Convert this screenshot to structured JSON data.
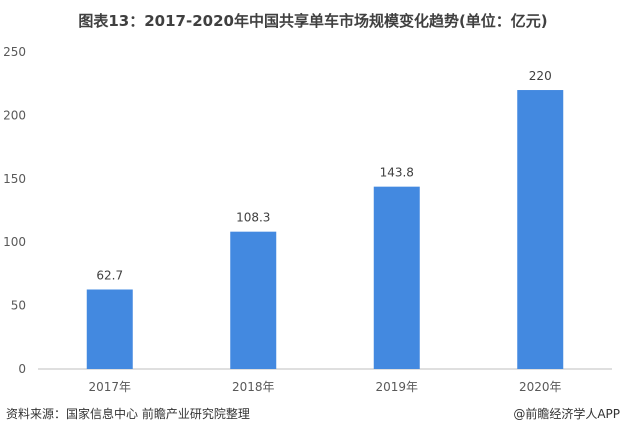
{
  "chart_data": {
    "type": "bar",
    "title": "图表13：2017-2020年中国共享单车市场规模变化趋势(单位：亿元)",
    "categories": [
      "2017年",
      "2018年",
      "2019年",
      "2020年"
    ],
    "values": [
      62.7,
      108.3,
      143.8,
      220
    ],
    "value_labels": [
      "62.7",
      "108.3",
      "143.8",
      "220"
    ],
    "ylim": [
      0,
      250
    ],
    "yticks": [
      0,
      50,
      100,
      150,
      200,
      250
    ],
    "xlabel": "",
    "ylabel": "",
    "grid": false,
    "bar_color": "#4389E0"
  },
  "footer": {
    "source": "资料来源：国家信息中心 前瞻产业研究院整理",
    "brand": "@前瞻经济学人APP"
  }
}
